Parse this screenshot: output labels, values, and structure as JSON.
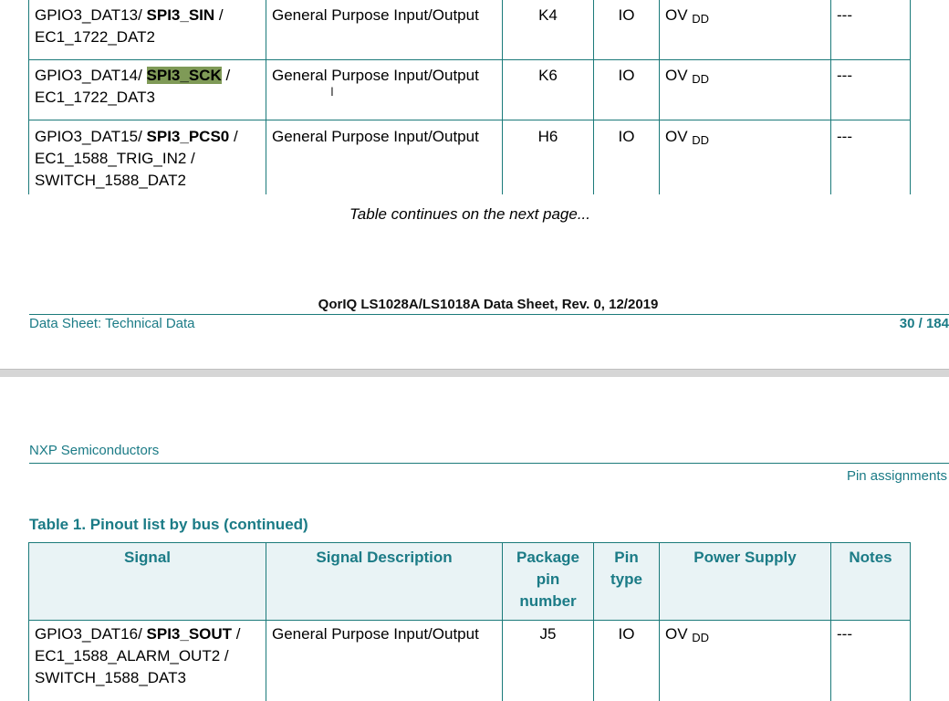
{
  "page1": {
    "rows": [
      {
        "signal": {
          "a": "GPIO3_DAT13/ ",
          "b": "SPI3_SIN",
          "c": " /",
          "d": "EC1_1722_DAT2",
          "e": ""
        },
        "description": "General Purpose Input/Output",
        "package_pin": "K4",
        "pin_type": "IO",
        "supply_main": "OV",
        "supply_sub": "DD",
        "notes": "---"
      },
      {
        "signal": {
          "a": "GPIO3_DAT14/ ",
          "b": "SPI3_SCK",
          "c": " /",
          "d": "EC1_1722_DAT3",
          "e": ""
        },
        "description": "General Purpose Input/Output",
        "package_pin": "K6",
        "pin_type": "IO",
        "supply_main": "OV",
        "supply_sub": "DD",
        "notes": "---",
        "highlighted": "SPI3_SCK"
      },
      {
        "signal": {
          "a": "GPIO3_DAT15/ ",
          "b": "SPI3_PCS0",
          "c": " /",
          "d": "EC1_1588_TRIG_IN2 /",
          "e": "SWITCH_1588_DAT2"
        },
        "description": "General Purpose Input/Output",
        "package_pin": "H6",
        "pin_type": "IO",
        "supply_main": "OV",
        "supply_sub": "DD",
        "notes": "---"
      }
    ],
    "continuation": "Table continues on the next page...",
    "doc_title": "QorIQ LS1028A/LS1018A Data Sheet, Rev. 0, 12/2019",
    "footer_left": "Data Sheet: Technical Data",
    "page_number": "30 / 184"
  },
  "page2": {
    "company": "NXP Semiconductors",
    "section": "Pin assignments",
    "table_caption": "Table 1.  Pinout list by bus (continued)",
    "headers": {
      "signal": "Signal",
      "description": "Signal Description",
      "package_pin_1": "Package",
      "package_pin_2": "pin",
      "package_pin_3": "number",
      "pin_type_1": "Pin",
      "pin_type_2": "type",
      "power_supply": "Power Supply",
      "notes": "Notes"
    },
    "rows": [
      {
        "signal": {
          "a": "GPIO3_DAT16/ ",
          "b": "SPI3_SOUT",
          "c": " /",
          "d": "EC1_1588_ALARM_OUT2 /",
          "e": "SWITCH_1588_DAT3"
        },
        "description": "General Purpose Input/Output",
        "package_pin": "J5",
        "pin_type": "IO",
        "supply_main": "OV",
        "supply_sub": "DD",
        "notes": "---"
      }
    ]
  },
  "colors": {
    "accent": "#1b7b86",
    "table_border": "#1b7a7a",
    "header_bg": "#e9f3f5",
    "highlight": "#7f9a57"
  },
  "icons": {
    "cursor": "text-cursor-icon"
  }
}
